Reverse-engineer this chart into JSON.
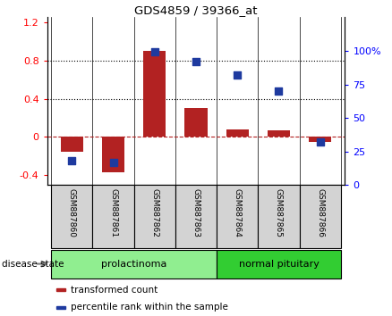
{
  "title": "GDS4859 / 39366_at",
  "samples": [
    "GSM887860",
    "GSM887861",
    "GSM887862",
    "GSM887863",
    "GSM887864",
    "GSM887865",
    "GSM887866"
  ],
  "transformed_count": [
    -0.15,
    -0.37,
    0.9,
    0.3,
    0.08,
    0.07,
    -0.05
  ],
  "percentile_rank": [
    18,
    17,
    99,
    92,
    82,
    70,
    32
  ],
  "groups": [
    {
      "label": "prolactinoma",
      "indices": [
        0,
        1,
        2,
        3
      ],
      "color": "#90EE90"
    },
    {
      "label": "normal pituitary",
      "indices": [
        4,
        5,
        6
      ],
      "color": "#32CD32"
    }
  ],
  "disease_state_label": "disease state",
  "left_ylim": [
    -0.5,
    1.25
  ],
  "left_yticks": [
    -0.4,
    0.0,
    0.4,
    0.8,
    1.2
  ],
  "left_yticklabels": [
    "-0.4",
    "0",
    "0.4",
    "0.8",
    "1.2"
  ],
  "right_ylim": [
    0,
    125
  ],
  "right_yticks": [
    0,
    25,
    50,
    75,
    100
  ],
  "right_yticklabels": [
    "0",
    "25",
    "50",
    "75",
    "100%"
  ],
  "bar_color": "#B22222",
  "scatter_color": "#1E3A9F",
  "bar_width": 0.55,
  "box_color": "#D3D3D3",
  "legend_items": [
    {
      "label": "transformed count",
      "color": "#B22222"
    },
    {
      "label": "percentile rank within the sample",
      "color": "#1E3A9F"
    }
  ]
}
